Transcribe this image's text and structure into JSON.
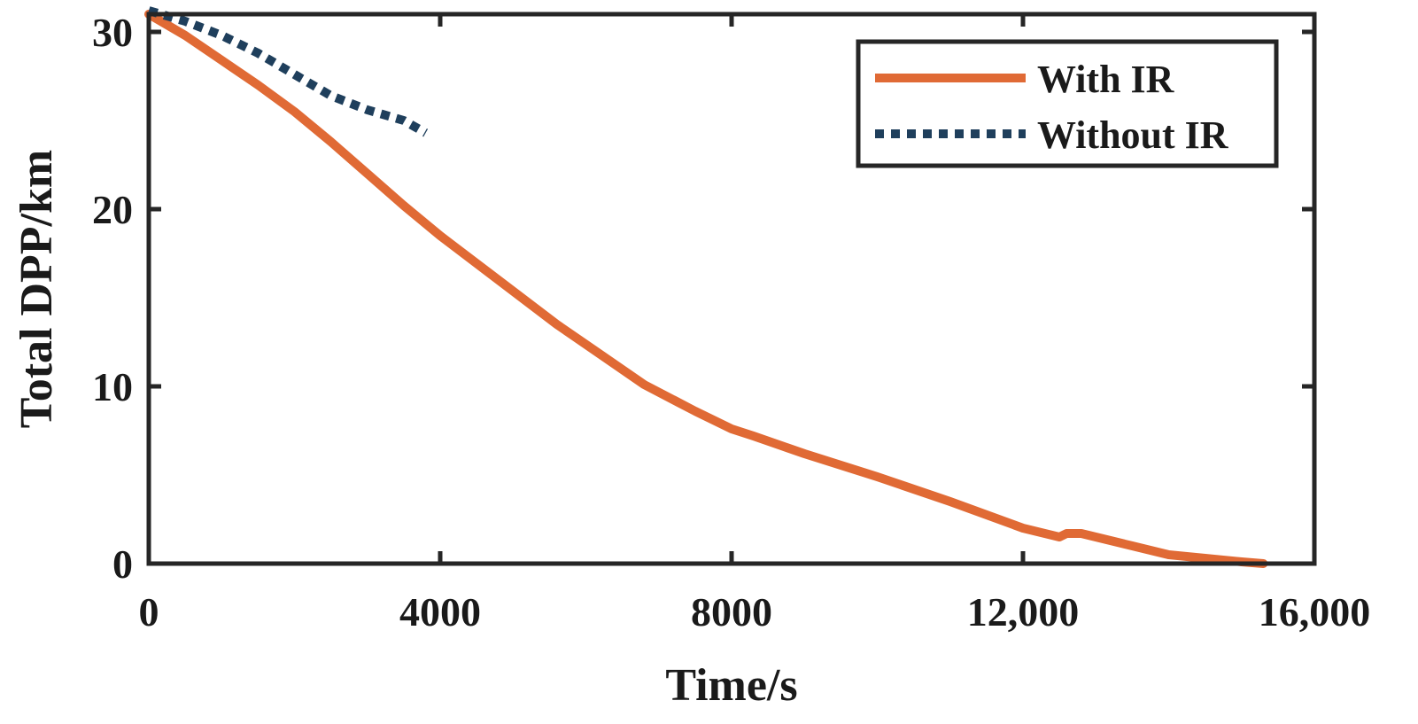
{
  "chart_data": {
    "type": "line",
    "title": "",
    "xlabel": "Time/s",
    "ylabel": "Total DPP/km",
    "xlim": [
      0,
      16000
    ],
    "ylim": [
      0,
      31
    ],
    "x_ticks": [
      0,
      4000,
      8000,
      12000,
      16000
    ],
    "x_tick_labels": [
      "0",
      "4000",
      "8000",
      "12,000",
      "16,000"
    ],
    "y_ticks": [
      0,
      10,
      20,
      30
    ],
    "y_tick_labels": [
      "0",
      "10",
      "20",
      "30"
    ],
    "legend_position": "top-right",
    "series": [
      {
        "name": "With IR",
        "color": "#E06A35",
        "style": "solid",
        "x": [
          0,
          500,
          1000,
          1500,
          2000,
          2500,
          3000,
          3500,
          4000,
          4800,
          5600,
          6200,
          6800,
          7500,
          8000,
          8300,
          9000,
          10000,
          11000,
          12000,
          12400,
          12500,
          12600,
          12800,
          13500,
          14000,
          14500,
          15000,
          15300
        ],
        "y": [
          31.0,
          29.8,
          28.4,
          27.0,
          25.5,
          23.8,
          22.0,
          20.2,
          18.5,
          16.0,
          13.5,
          11.8,
          10.1,
          8.6,
          7.6,
          7.2,
          6.2,
          4.9,
          3.5,
          2.0,
          1.6,
          1.5,
          1.7,
          1.7,
          1.0,
          0.5,
          0.3,
          0.1,
          0.0
        ]
      },
      {
        "name": "Without IR",
        "color": "#1F3F5C",
        "style": "dotted",
        "x": [
          0,
          500,
          1000,
          1500,
          2000,
          2500,
          3000,
          3500,
          3800
        ],
        "y": [
          31.2,
          30.6,
          29.8,
          28.8,
          27.6,
          26.4,
          25.6,
          25.0,
          24.3
        ]
      }
    ]
  }
}
